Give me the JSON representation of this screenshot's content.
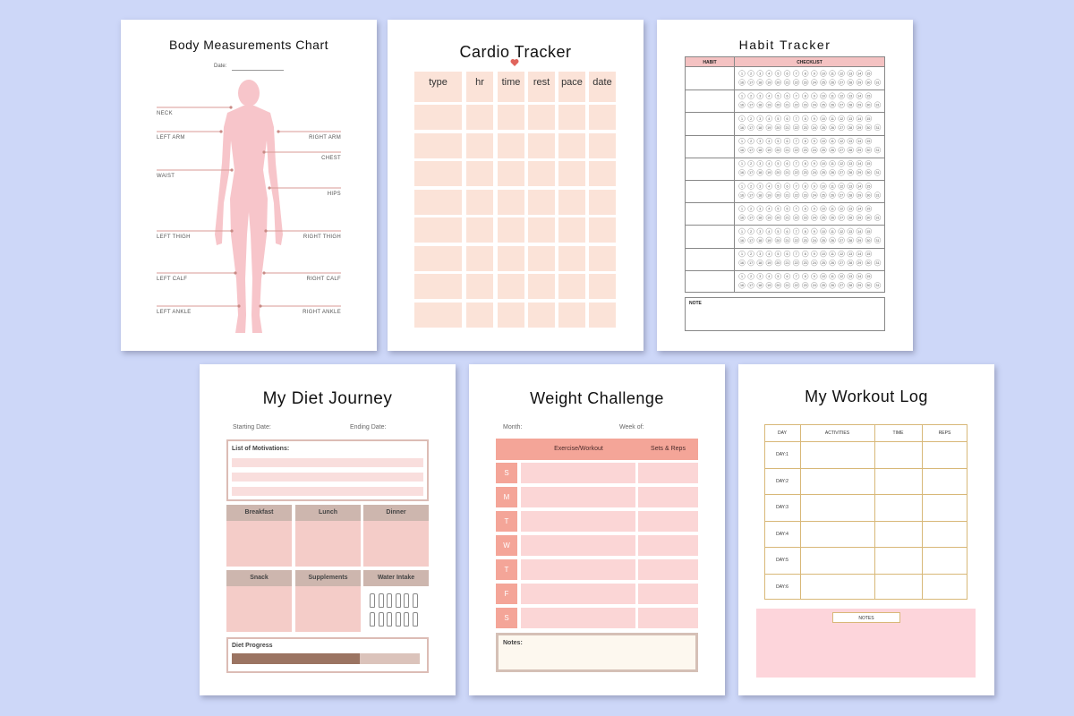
{
  "body_measurements": {
    "title": "Body Measurements Chart",
    "date_label": "Date:",
    "labels": [
      "NECK",
      "LEFT ARM",
      "RIGHT ARM",
      "CHEST",
      "WAIST",
      "HIPS",
      "LEFT THIGH",
      "RIGHT THIGH",
      "LEFT CALF",
      "RIGHT CALF",
      "LEFT ANKLE",
      "RIGHT ANKLE"
    ]
  },
  "cardio_tracker": {
    "title": "Cardio Tracker",
    "columns": [
      "type",
      "hr",
      "time",
      "rest",
      "pace",
      "date"
    ]
  },
  "habit_tracker": {
    "title": "Habit Tracker",
    "columns": [
      "HABIT",
      "CHECKLIST"
    ],
    "days": [
      1,
      2,
      3,
      4,
      5,
      6,
      7,
      8,
      9,
      10,
      11,
      12,
      13,
      14,
      15,
      16,
      17,
      18,
      19,
      20,
      21,
      22,
      23,
      24,
      25,
      26,
      27,
      28,
      29,
      30,
      31
    ],
    "note_label": "NOTE"
  },
  "diet_journey": {
    "title": "My Diet Journey",
    "starting_date_label": "Starting Date:",
    "ending_date_label": "Ending Date:",
    "motivations_label": "List of Motivations:",
    "meals": [
      "Breakfast",
      "Lunch",
      "Dinner",
      "Snack",
      "Supplements",
      "Water Intake"
    ],
    "progress_label": "Diet Progress"
  },
  "weight_challenge": {
    "title": "Weight Challenge",
    "month_label": "Month:",
    "week_label": "Week of:",
    "columns": [
      "Exercise/Workout",
      "Sets & Reps"
    ],
    "days": [
      "S",
      "M",
      "T",
      "W",
      "T",
      "F",
      "S"
    ],
    "notes_label": "Notes:"
  },
  "workout_log": {
    "title": "My Workout Log",
    "columns": [
      "DAY",
      "ACTIVITIES",
      "TIME",
      "REPS"
    ],
    "days": [
      "DAY:1",
      "DAY:2",
      "DAY:3",
      "DAY:4",
      "DAY:5",
      "DAY:6"
    ],
    "notes_label": "NOTES"
  }
}
